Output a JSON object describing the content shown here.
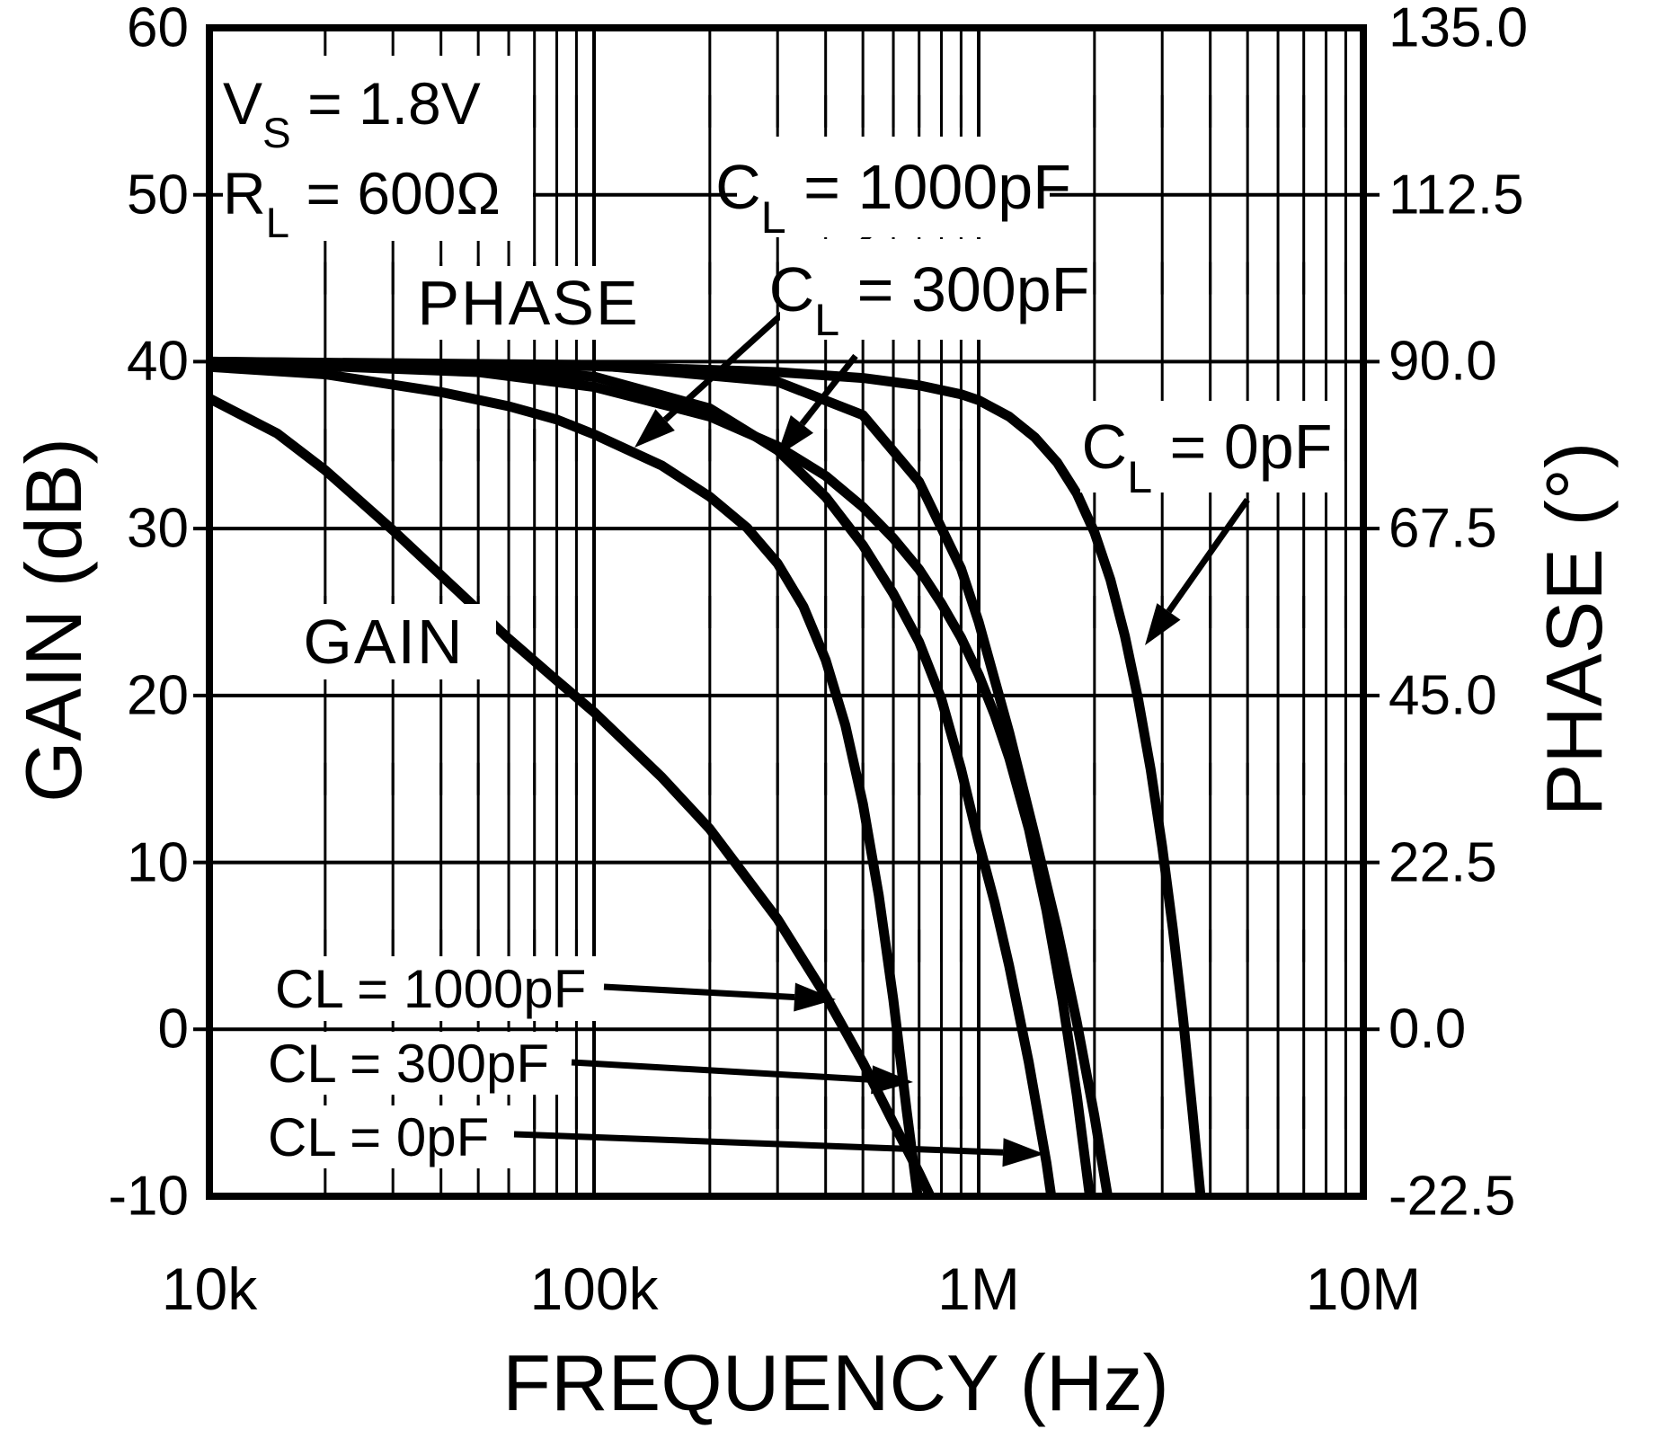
{
  "figure": {
    "background_color": "#ffffff",
    "line_color": "#000000"
  },
  "conditions": {
    "line1": {
      "pre": "V",
      "sub": "S",
      "post": " = 1.8V"
    },
    "line2": {
      "pre": "R",
      "sub": "L",
      "post": " = 600Ω"
    }
  },
  "inplot_labels": {
    "phase": "PHASE",
    "gain": "GAIN"
  },
  "curve_labels_top": {
    "cl1000": {
      "pre": "C",
      "sub": "L",
      "post": " = 1000pF"
    },
    "cl300": {
      "pre": "C",
      "sub": "L",
      "post": " = 300pF"
    },
    "cl0": {
      "pre": "C",
      "sub": "L",
      "post": " = 0pF"
    }
  },
  "curve_labels_bottom": {
    "cl1000": "CL = 1000pF",
    "cl300": "CL = 300pF",
    "cl0": "CL = 0pF"
  },
  "axes": {
    "x": {
      "label": "FREQUENCY (Hz)",
      "scale": "log",
      "min_hz": 10000,
      "max_hz": 10000000,
      "tick_labels": [
        "10k",
        "100k",
        "1M",
        "10M"
      ],
      "tick_values_hz": [
        10000,
        100000,
        1000000,
        10000000
      ]
    },
    "y_left": {
      "label": "GAIN (dB)",
      "min": -10,
      "max": 60,
      "tick_labels": [
        "60",
        "50",
        "40",
        "30",
        "20",
        "10",
        "0",
        "-10"
      ],
      "tick_values": [
        60,
        50,
        40,
        30,
        20,
        10,
        0,
        -10
      ]
    },
    "y_right": {
      "label": "PHASE (°)",
      "min": -22.5,
      "max": 135.0,
      "tick_labels": [
        "135.0",
        "112.5",
        "90.0",
        "67.5",
        "45.0",
        "22.5",
        "0.0",
        "-22.5"
      ],
      "tick_values": [
        135.0,
        112.5,
        90.0,
        67.5,
        45.0,
        22.5,
        0.0,
        -22.5
      ]
    }
  },
  "chart_data": {
    "type": "line",
    "title": "",
    "xlabel": "FREQUENCY (Hz)",
    "ylabel_left": "GAIN (dB)",
    "ylabel_right": "PHASE (°)",
    "x_scale": "log",
    "x_range_hz": [
      10000,
      10000000
    ],
    "gain_range_db": [
      -10,
      60
    ],
    "phase_range_deg": [
      -22.5,
      135.0
    ],
    "grid": "log-minor-full",
    "legend_position": "none (labeled arrows)",
    "series": [
      {
        "name": "PHASE, CL = 0pF",
        "axis": "phase",
        "units": "deg",
        "points": [
          [
            10000,
            90.0
          ],
          [
            100000,
            89.4
          ],
          [
            300000,
            88.6
          ],
          [
            500000,
            87.8
          ],
          [
            700000,
            86.8
          ],
          [
            900000,
            85.6
          ],
          [
            1000000,
            84.8
          ],
          [
            1200000,
            82.6
          ],
          [
            1400000,
            79.8
          ],
          [
            1600000,
            76.4
          ],
          [
            1800000,
            72.2
          ],
          [
            2000000,
            67.0
          ],
          [
            2200000,
            60.6
          ],
          [
            2400000,
            53.0
          ],
          [
            2600000,
            44.4
          ],
          [
            2800000,
            35.0
          ],
          [
            3000000,
            24.6
          ],
          [
            3200000,
            13.4
          ],
          [
            3400000,
            1.4
          ],
          [
            3600000,
            -11.4
          ],
          [
            3800000,
            -24.0
          ]
        ]
      },
      {
        "name": "PHASE, CL = 300pF",
        "axis": "phase",
        "units": "deg",
        "points": [
          [
            10000,
            90.0
          ],
          [
            50000,
            88.6
          ],
          [
            100000,
            86.6
          ],
          [
            200000,
            82.6
          ],
          [
            300000,
            78.6
          ],
          [
            400000,
            74.6
          ],
          [
            500000,
            70.4
          ],
          [
            600000,
            66.2
          ],
          [
            700000,
            62.0
          ],
          [
            800000,
            57.4
          ],
          [
            900000,
            52.8
          ],
          [
            1000000,
            47.8
          ],
          [
            1100000,
            42.4
          ],
          [
            1200000,
            36.6
          ],
          [
            1350000,
            27.0
          ],
          [
            1500000,
            16.0
          ],
          [
            1650000,
            4.0
          ],
          [
            1800000,
            -9.0
          ],
          [
            1950000,
            -23.0
          ]
        ]
      },
      {
        "name": "PHASE, CL = 1000pF",
        "axis": "phase",
        "units": "deg",
        "points": [
          [
            10000,
            89.3
          ],
          [
            20000,
            88.3
          ],
          [
            40000,
            85.9
          ],
          [
            60000,
            84.0
          ],
          [
            80000,
            82.2
          ],
          [
            100000,
            80.2
          ],
          [
            150000,
            76.0
          ],
          [
            200000,
            71.8
          ],
          [
            250000,
            67.6
          ],
          [
            300000,
            62.8
          ],
          [
            350000,
            57.0
          ],
          [
            400000,
            49.8
          ],
          [
            450000,
            41.0
          ],
          [
            500000,
            30.4
          ],
          [
            550000,
            18.0
          ],
          [
            600000,
            4.0
          ],
          [
            650000,
            -11.0
          ],
          [
            700000,
            -24.0
          ]
        ]
      },
      {
        "name": "GAIN, CL = 0pF",
        "axis": "gain",
        "units": "dB",
        "points": [
          [
            10000,
            40.0
          ],
          [
            100000,
            39.8
          ],
          [
            300000,
            38.8
          ],
          [
            500000,
            36.8
          ],
          [
            700000,
            32.8
          ],
          [
            900000,
            27.6
          ],
          [
            1000000,
            24.4
          ],
          [
            1200000,
            17.8
          ],
          [
            1400000,
            11.6
          ],
          [
            1600000,
            6.0
          ],
          [
            1800000,
            0.4
          ],
          [
            2000000,
            -5.2
          ],
          [
            2200000,
            -11.0
          ],
          [
            2350000,
            -15.0
          ]
        ]
      },
      {
        "name": "GAIN, CL = 300pF",
        "axis": "gain",
        "units": "dB",
        "points": [
          [
            10000,
            40.0
          ],
          [
            50000,
            39.6
          ],
          [
            100000,
            39.1
          ],
          [
            200000,
            37.2
          ],
          [
            300000,
            34.7
          ],
          [
            400000,
            31.9
          ],
          [
            500000,
            29.0
          ],
          [
            600000,
            26.1
          ],
          [
            700000,
            23.2
          ],
          [
            800000,
            19.8
          ],
          [
            900000,
            15.6
          ],
          [
            1000000,
            11.2
          ],
          [
            1100000,
            7.6
          ],
          [
            1200000,
            3.8
          ],
          [
            1350000,
            -2.0
          ],
          [
            1500000,
            -8.0
          ],
          [
            1600000,
            -12.5
          ]
        ]
      },
      {
        "name": "GAIN, CL = 1000pF",
        "axis": "gain",
        "units": "dB",
        "points": [
          [
            10000,
            37.8
          ],
          [
            15000,
            35.7
          ],
          [
            20000,
            33.5
          ],
          [
            30000,
            29.9
          ],
          [
            40000,
            27.2
          ],
          [
            60000,
            23.4
          ],
          [
            80000,
            20.9
          ],
          [
            100000,
            19.0
          ],
          [
            150000,
            15.1
          ],
          [
            200000,
            12.0
          ],
          [
            300000,
            6.6
          ],
          [
            400000,
            2.0
          ],
          [
            500000,
            -2.0
          ],
          [
            600000,
            -5.6
          ],
          [
            700000,
            -8.6
          ],
          [
            800000,
            -11.4
          ],
          [
            900000,
            -14.0
          ]
        ]
      }
    ]
  }
}
